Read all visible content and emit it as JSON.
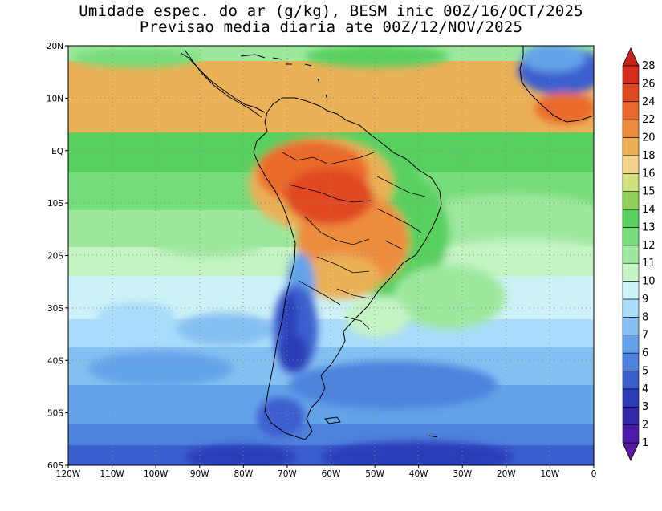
{
  "title": {
    "line1": "Umidade espec. do ar (g/kg), BESM inic 00Z/16/OCT/2025",
    "line2": "Previsao media diaria ate 00Z/12/NOV/2025"
  },
  "map": {
    "lat_labels": [
      "20N",
      "10N",
      "EQ",
      "10S",
      "20S",
      "30S",
      "40S",
      "50S",
      "60S"
    ],
    "lon_labels": [
      "120W",
      "110W",
      "100W",
      "90W",
      "80W",
      "70W",
      "60W",
      "50W",
      "40W",
      "30W",
      "20W",
      "10W",
      "0"
    ],
    "lat_range": [
      -60,
      20
    ],
    "lon_range": [
      -120,
      0
    ],
    "grid": "dotted"
  },
  "colorbar": {
    "labels": [
      "1",
      "2",
      "3",
      "4",
      "5",
      "6",
      "7",
      "8",
      "9",
      "10",
      "11",
      "12",
      "13",
      "14",
      "15",
      "16",
      "18",
      "20",
      "22",
      "24",
      "26",
      "28"
    ],
    "colors": [
      "#4a1aa8",
      "#3028a8",
      "#2b3cb8",
      "#3c5fcf",
      "#4e83dd",
      "#63a3e9",
      "#85c0f2",
      "#a9dcfa",
      "#cdf2f7",
      "#c4f3c4",
      "#9de89e",
      "#77dc7a",
      "#58d060",
      "#8fcf55",
      "#cde07a",
      "#f4d28c",
      "#ebb157",
      "#ee8c3e",
      "#ea6a2c",
      "#e04a22",
      "#d62b1d"
    ]
  }
}
